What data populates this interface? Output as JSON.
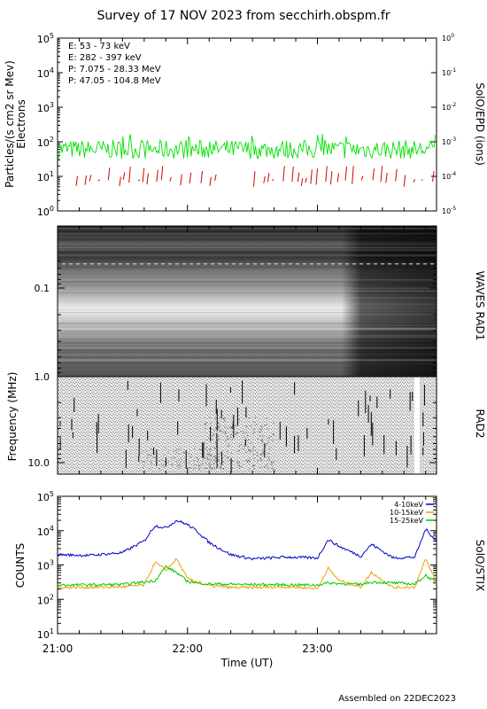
{
  "title": "Survey of 17 NOV 2023 from secchirh.obspm.fr",
  "footer": "Assembled on 22DEC2023",
  "time_axis": {
    "label": "Time (UT)",
    "ticks": [
      "21:00",
      "22:00",
      "23:00"
    ]
  },
  "colors": {
    "e_low": "#00e000",
    "e_high": "#d00000",
    "p_low": "#000000",
    "p_high": "#0000c0",
    "stix_4_10": "#0000c8",
    "stix_10_15": "#f0a000",
    "stix_15_25": "#00c800"
  },
  "chart_data": [
    {
      "type": "line",
      "name": "epd",
      "ylabel_left": "Particles/(s cm2 sr Mev)",
      "ylabel_left2": "Electrons",
      "ylabel_right": "SolO/EPD (ions)",
      "left_scale": "log",
      "left_ylim": [
        1,
        100000
      ],
      "left_ticks": [
        "10",
        "10",
        "10",
        "10",
        "10",
        "10"
      ],
      "left_tick_exps": [
        "0",
        "1",
        "2",
        "3",
        "4",
        "5"
      ],
      "right_scale": "log",
      "right_ylim": [
        1e-05,
        1
      ],
      "right_ticks": [
        "10",
        "10",
        "10",
        "10",
        "10",
        "10"
      ],
      "right_tick_exps": [
        "-5",
        "-4",
        "-3",
        "-2",
        "-1",
        "0"
      ],
      "xlim": [
        "21:00",
        "23:55"
      ],
      "legend_position": "top-left",
      "legend": [
        {
          "text": "E: 53 - 73 keV",
          "color": "#00e000"
        },
        {
          "text": "E: 282 - 397 keV",
          "color": "#d00000"
        },
        {
          "text": "P: 7.075 - 28.33 MeV",
          "color": "#000000"
        },
        {
          "text": "P: 47.05 - 104.8 MeV",
          "color": "#0000c0"
        }
      ],
      "series": [
        {
          "name": "E: 53 - 73 keV",
          "color": "#00e000",
          "typical_value": 60,
          "range": [
            30,
            170
          ]
        },
        {
          "name": "E: 282 - 397 keV",
          "color": "#d00000",
          "typical_value": 8,
          "range": [
            5,
            20
          ],
          "sparse": true
        }
      ]
    },
    {
      "type": "heatmap",
      "name": "waves",
      "ylabel": "Frequency (MHz)",
      "y_scale": "log",
      "ylim_mhz": [
        0.05,
        12
      ],
      "yticks": [
        "0.1",
        "1.0",
        "10.0"
      ],
      "band_labels": [
        "WAVES RAD1",
        "RAD2"
      ]
    },
    {
      "type": "line",
      "name": "stix",
      "ylabel": "COUNTS",
      "ylabel_right": "SolO/STIX",
      "y_scale": "log",
      "ylim": [
        10,
        100000
      ],
      "yticks": [
        "10",
        "10",
        "10",
        "10",
        "10"
      ],
      "ytick_exps": [
        "1",
        "2",
        "3",
        "4",
        "5"
      ],
      "xlim": [
        "21:00",
        "23:55"
      ],
      "legend_position": "top-right",
      "series": [
        {
          "name": "4-10keV",
          "color": "#0000c8",
          "x": [
            "21:00",
            "21:15",
            "21:30",
            "21:40",
            "21:45",
            "21:50",
            "21:55",
            "22:00",
            "22:05",
            "22:10",
            "22:20",
            "22:30",
            "22:45",
            "23:00",
            "23:05",
            "23:10",
            "23:20",
            "23:25",
            "23:35",
            "23:45",
            "23:50",
            "23:55"
          ],
          "y": [
            2000,
            1900,
            2300,
            5000,
            14000,
            12000,
            20000,
            15000,
            9000,
            4500,
            2000,
            1500,
            1700,
            1600,
            5500,
            3500,
            1800,
            4000,
            1600,
            1700,
            11000,
            5000
          ]
        },
        {
          "name": "10-15keV",
          "color": "#f0a000",
          "x": [
            "21:00",
            "21:30",
            "21:40",
            "21:45",
            "21:50",
            "21:55",
            "22:00",
            "22:05",
            "22:10",
            "22:20",
            "22:30",
            "22:45",
            "23:00",
            "23:05",
            "23:10",
            "23:20",
            "23:25",
            "23:35",
            "23:45",
            "23:50",
            "23:55"
          ],
          "y": [
            220,
            230,
            260,
            1200,
            700,
            1500,
            400,
            300,
            250,
            220,
            220,
            230,
            210,
            800,
            350,
            230,
            600,
            220,
            230,
            1500,
            300
          ]
        },
        {
          "name": "15-25keV",
          "color": "#00c800",
          "x": [
            "21:00",
            "21:30",
            "21:45",
            "21:50",
            "21:55",
            "22:00",
            "22:10",
            "22:30",
            "23:00",
            "23:05",
            "23:20",
            "23:25",
            "23:45",
            "23:50",
            "23:55"
          ],
          "y": [
            260,
            270,
            350,
            900,
            600,
            330,
            280,
            270,
            260,
            300,
            270,
            320,
            280,
            500,
            300
          ]
        }
      ]
    }
  ]
}
